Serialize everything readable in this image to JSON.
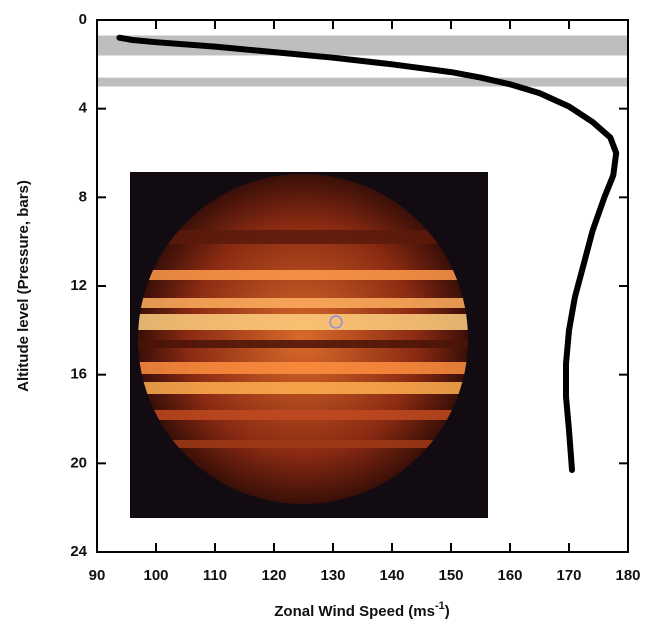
{
  "chart_data": {
    "type": "line",
    "x_label": "Zonal Wind Speed (ms",
    "x_label_sup": "-1",
    "x_label_end": ")",
    "y_label": "Altitude level (Pressure, bars)",
    "x": [
      93.8,
      96,
      100,
      110,
      120,
      130,
      140,
      150,
      155,
      160,
      165,
      170,
      174,
      177,
      178,
      177.5,
      176,
      174,
      172.5,
      171,
      170,
      169.5,
      169.5,
      170,
      170.5
    ],
    "values": [
      0.8,
      0.9,
      1.0,
      1.2,
      1.45,
      1.7,
      2.0,
      2.35,
      2.6,
      2.9,
      3.3,
      3.9,
      4.6,
      5.3,
      6.0,
      7.0,
      8.0,
      9.5,
      11.0,
      12.5,
      14.0,
      15.5,
      17.0,
      18.5,
      20.3
    ],
    "color": "#000000",
    "shaded_bands": [
      [
        0.7,
        1.6
      ],
      [
        2.6,
        3.0
      ]
    ],
    "xlim": [
      90,
      180
    ],
    "xticks": [
      90,
      100,
      110,
      120,
      130,
      140,
      150,
      160,
      170,
      180
    ],
    "ylim": [
      0,
      24
    ],
    "yticks": [
      0,
      4,
      8,
      12,
      16,
      20,
      24
    ],
    "y_inverted": true
  }
}
